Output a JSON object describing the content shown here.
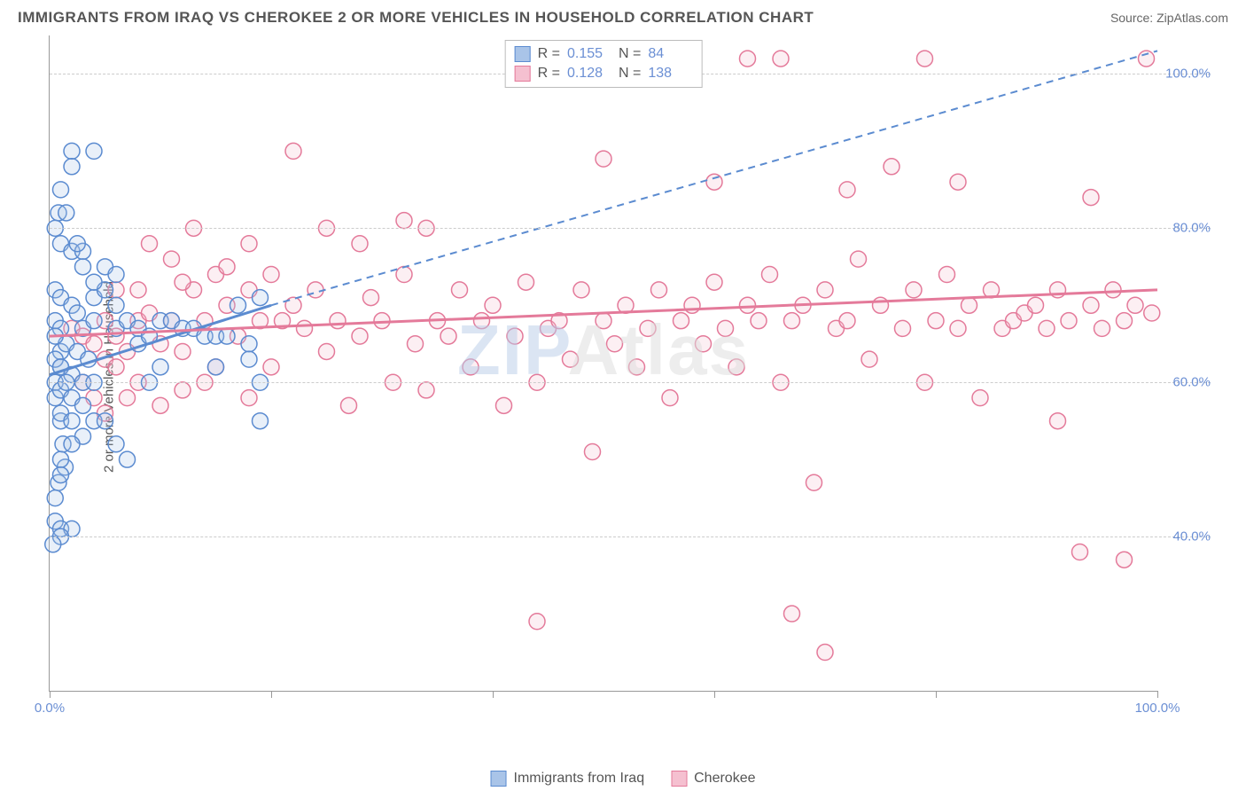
{
  "header": {
    "title": "IMMIGRANTS FROM IRAQ VS CHEROKEE 2 OR MORE VEHICLES IN HOUSEHOLD CORRELATION CHART",
    "source": "Source: ZipAtlas.com"
  },
  "chart": {
    "type": "scatter",
    "y_axis_label": "2 or more Vehicles in Household",
    "xlim": [
      0,
      100
    ],
    "ylim": [
      20,
      105
    ],
    "x_ticks": [
      0,
      20,
      40,
      60,
      80,
      100
    ],
    "x_tick_labels": {
      "0": "0.0%",
      "100": "100.0%"
    },
    "y_grid": [
      40,
      60,
      80,
      100
    ],
    "y_tick_labels": {
      "40": "40.0%",
      "60": "60.0%",
      "80": "80.0%",
      "100": "100.0%"
    },
    "background_color": "#ffffff",
    "grid_color": "#cccccc",
    "axis_color": "#999999",
    "y_label_color": "#6b8fd4",
    "marker_radius": 9,
    "marker_stroke_width": 1.5,
    "marker_fill_opacity": 0.25,
    "series": [
      {
        "name": "Immigrants from Iraq",
        "color_stroke": "#5b8bd0",
        "color_fill": "#a9c4e8",
        "R": "0.155",
        "N": "84",
        "trend_solid": {
          "x1": 0,
          "y1": 61,
          "x2": 20,
          "y2": 70
        },
        "trend_dashed": {
          "x1": 20,
          "y1": 70,
          "x2": 100,
          "y2": 103
        },
        "points": [
          [
            1,
            62
          ],
          [
            1,
            64
          ],
          [
            0.5,
            60
          ],
          [
            0.5,
            58
          ],
          [
            1,
            55
          ],
          [
            1.2,
            52
          ],
          [
            1.4,
            49
          ],
          [
            0.8,
            47
          ],
          [
            2,
            90
          ],
          [
            2,
            88
          ],
          [
            4,
            90
          ],
          [
            1,
            85
          ],
          [
            0.8,
            82
          ],
          [
            1,
            78
          ],
          [
            2,
            77
          ],
          [
            3,
            77
          ],
          [
            0.5,
            72
          ],
          [
            1,
            71
          ],
          [
            2,
            70
          ],
          [
            2.5,
            69
          ],
          [
            0.5,
            68
          ],
          [
            1,
            67
          ],
          [
            3,
            67
          ],
          [
            4,
            68
          ],
          [
            1.5,
            65
          ],
          [
            2.5,
            64
          ],
          [
            3.5,
            63
          ],
          [
            0.5,
            63
          ],
          [
            1,
            62
          ],
          [
            2,
            61
          ],
          [
            3,
            60
          ],
          [
            4,
            60
          ],
          [
            1,
            59
          ],
          [
            2,
            58
          ],
          [
            3,
            57
          ],
          [
            1,
            56
          ],
          [
            2,
            55
          ],
          [
            3,
            53
          ],
          [
            2,
            52
          ],
          [
            1,
            50
          ],
          [
            1,
            48
          ],
          [
            0.5,
            45
          ],
          [
            0.5,
            42
          ],
          [
            1,
            41
          ],
          [
            2,
            41
          ],
          [
            1,
            40
          ],
          [
            0.3,
            39
          ],
          [
            5,
            75
          ],
          [
            6,
            74
          ],
          [
            6,
            67
          ],
          [
            7,
            68
          ],
          [
            8,
            67
          ],
          [
            8,
            65
          ],
          [
            9,
            66
          ],
          [
            9,
            60
          ],
          [
            10,
            68
          ],
          [
            10,
            62
          ],
          [
            11,
            68
          ],
          [
            12,
            67
          ],
          [
            13,
            67
          ],
          [
            14,
            66
          ],
          [
            15,
            66
          ],
          [
            15,
            62
          ],
          [
            16,
            66
          ],
          [
            17,
            70
          ],
          [
            18,
            65
          ],
          [
            18,
            63
          ],
          [
            19,
            71
          ],
          [
            19,
            60
          ],
          [
            19,
            55
          ],
          [
            4,
            55
          ],
          [
            5,
            55
          ],
          [
            6,
            52
          ],
          [
            7,
            50
          ],
          [
            4,
            71
          ],
          [
            5,
            72
          ],
          [
            6,
            70
          ],
          [
            0.5,
            80
          ],
          [
            1.5,
            82
          ],
          [
            2.5,
            78
          ],
          [
            3,
            75
          ],
          [
            4,
            73
          ],
          [
            0.5,
            66
          ],
          [
            1.5,
            60
          ]
        ]
      },
      {
        "name": "Cherokee",
        "color_stroke": "#e47a9a",
        "color_fill": "#f5c0d0",
        "R": "0.128",
        "N": "138",
        "trend_solid": {
          "x1": 0,
          "y1": 66,
          "x2": 100,
          "y2": 72
        },
        "trend_dashed": null,
        "points": [
          [
            2,
            67
          ],
          [
            3,
            66
          ],
          [
            4,
            65
          ],
          [
            5,
            68
          ],
          [
            5,
            63
          ],
          [
            6,
            66
          ],
          [
            6,
            62
          ],
          [
            7,
            64
          ],
          [
            8,
            68
          ],
          [
            8,
            60
          ],
          [
            9,
            69
          ],
          [
            10,
            65
          ],
          [
            10,
            57
          ],
          [
            11,
            68
          ],
          [
            12,
            64
          ],
          [
            12,
            59
          ],
          [
            13,
            72
          ],
          [
            14,
            68
          ],
          [
            14,
            60
          ],
          [
            15,
            74
          ],
          [
            15,
            62
          ],
          [
            16,
            70
          ],
          [
            17,
            66
          ],
          [
            18,
            72
          ],
          [
            18,
            58
          ],
          [
            19,
            68
          ],
          [
            20,
            74
          ],
          [
            20,
            62
          ],
          [
            21,
            68
          ],
          [
            22,
            70
          ],
          [
            23,
            67
          ],
          [
            24,
            72
          ],
          [
            25,
            64
          ],
          [
            26,
            68
          ],
          [
            27,
            57
          ],
          [
            28,
            66
          ],
          [
            29,
            71
          ],
          [
            30,
            68
          ],
          [
            31,
            60
          ],
          [
            32,
            74
          ],
          [
            33,
            65
          ],
          [
            34,
            80
          ],
          [
            34,
            59
          ],
          [
            35,
            68
          ],
          [
            36,
            66
          ],
          [
            37,
            72
          ],
          [
            38,
            62
          ],
          [
            39,
            68
          ],
          [
            40,
            70
          ],
          [
            41,
            57
          ],
          [
            42,
            66
          ],
          [
            43,
            73
          ],
          [
            44,
            60
          ],
          [
            44,
            29
          ],
          [
            45,
            67
          ],
          [
            46,
            68
          ],
          [
            47,
            63
          ],
          [
            48,
            72
          ],
          [
            49,
            51
          ],
          [
            50,
            68
          ],
          [
            50,
            89
          ],
          [
            51,
            65
          ],
          [
            52,
            70
          ],
          [
            53,
            62
          ],
          [
            54,
            67
          ],
          [
            55,
            72
          ],
          [
            56,
            58
          ],
          [
            57,
            68
          ],
          [
            58,
            70
          ],
          [
            59,
            65
          ],
          [
            60,
            73
          ],
          [
            60,
            86
          ],
          [
            61,
            67
          ],
          [
            62,
            62
          ],
          [
            63,
            70
          ],
          [
            63,
            102
          ],
          [
            64,
            68
          ],
          [
            65,
            74
          ],
          [
            66,
            60
          ],
          [
            66,
            102
          ],
          [
            67,
            68
          ],
          [
            67,
            30
          ],
          [
            68,
            70
          ],
          [
            69,
            47
          ],
          [
            70,
            72
          ],
          [
            70,
            25
          ],
          [
            71,
            67
          ],
          [
            72,
            68
          ],
          [
            72,
            85
          ],
          [
            73,
            76
          ],
          [
            74,
            63
          ],
          [
            75,
            70
          ],
          [
            76,
            88
          ],
          [
            77,
            67
          ],
          [
            78,
            72
          ],
          [
            79,
            60
          ],
          [
            79,
            102
          ],
          [
            80,
            68
          ],
          [
            81,
            74
          ],
          [
            82,
            67
          ],
          [
            82,
            86
          ],
          [
            83,
            70
          ],
          [
            84,
            58
          ],
          [
            85,
            72
          ],
          [
            86,
            67
          ],
          [
            87,
            68
          ],
          [
            88,
            69
          ],
          [
            89,
            70
          ],
          [
            90,
            67
          ],
          [
            91,
            72
          ],
          [
            91,
            55
          ],
          [
            92,
            68
          ],
          [
            93,
            38
          ],
          [
            94,
            70
          ],
          [
            94,
            84
          ],
          [
            95,
            67
          ],
          [
            96,
            72
          ],
          [
            97,
            68
          ],
          [
            97,
            37
          ],
          [
            98,
            70
          ],
          [
            99,
            102
          ],
          [
            99.5,
            69
          ],
          [
            9,
            78
          ],
          [
            11,
            76
          ],
          [
            13,
            80
          ],
          [
            18,
            78
          ],
          [
            22,
            90
          ],
          [
            25,
            80
          ],
          [
            28,
            78
          ],
          [
            32,
            81
          ],
          [
            6,
            72
          ],
          [
            8,
            72
          ],
          [
            12,
            73
          ],
          [
            16,
            75
          ],
          [
            5,
            56
          ],
          [
            7,
            58
          ],
          [
            3,
            60
          ],
          [
            4,
            58
          ]
        ]
      }
    ],
    "watermark": {
      "part1": "ZIP",
      "part2": "Atlas"
    }
  }
}
